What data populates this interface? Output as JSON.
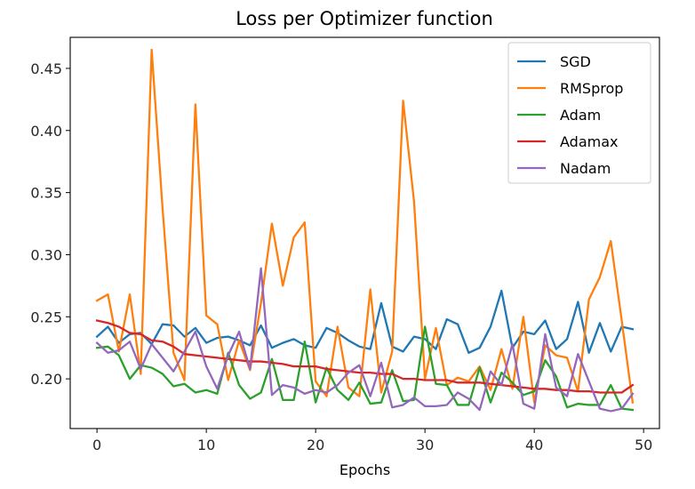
{
  "chart_data": {
    "type": "line",
    "title": "Loss per Optimizer function",
    "xlabel": "Epochs",
    "ylabel": "",
    "xlim": [
      -2.45,
      51.45
    ],
    "ylim": [
      0.16,
      0.475
    ],
    "xticks": [
      0,
      10,
      20,
      30,
      40,
      50
    ],
    "yticks": [
      0.2,
      0.25,
      0.3,
      0.35,
      0.4,
      0.45
    ],
    "ytick_labels": [
      "0.20",
      "0.25",
      "0.30",
      "0.35",
      "0.40",
      "0.45"
    ],
    "grid": false,
    "legend_position": "upper right",
    "x": [
      0,
      1,
      2,
      3,
      4,
      5,
      6,
      7,
      8,
      9,
      10,
      11,
      12,
      13,
      14,
      15,
      16,
      17,
      18,
      19,
      20,
      21,
      22,
      23,
      24,
      25,
      26,
      27,
      28,
      29,
      30,
      31,
      32,
      33,
      34,
      35,
      36,
      37,
      38,
      39,
      40,
      41,
      42,
      43,
      44,
      45,
      46,
      47,
      48,
      49
    ],
    "series": [
      {
        "name": "SGD",
        "color": "#1f77b4",
        "values": [
          0.234,
          0.242,
          0.229,
          0.236,
          0.237,
          0.228,
          0.244,
          0.243,
          0.234,
          0.241,
          0.229,
          0.233,
          0.234,
          0.231,
          0.227,
          0.243,
          0.225,
          0.229,
          0.232,
          0.227,
          0.225,
          0.241,
          0.237,
          0.231,
          0.226,
          0.224,
          0.261,
          0.226,
          0.222,
          0.234,
          0.232,
          0.224,
          0.248,
          0.244,
          0.221,
          0.225,
          0.242,
          0.271,
          0.225,
          0.238,
          0.236,
          0.247,
          0.224,
          0.232,
          0.262,
          0.221,
          0.245,
          0.222,
          0.242,
          0.24
        ]
      },
      {
        "name": "RMSprop",
        "color": "#ff7f0e",
        "values": [
          0.263,
          0.268,
          0.222,
          0.268,
          0.204,
          0.465,
          0.337,
          0.221,
          0.199,
          0.421,
          0.251,
          0.244,
          0.199,
          0.231,
          0.207,
          0.261,
          0.325,
          0.275,
          0.314,
          0.326,
          0.198,
          0.186,
          0.242,
          0.193,
          0.186,
          0.272,
          0.189,
          0.222,
          0.424,
          0.343,
          0.2,
          0.241,
          0.195,
          0.201,
          0.198,
          0.21,
          0.191,
          0.224,
          0.192,
          0.25,
          0.181,
          0.227,
          0.219,
          0.217,
          0.19,
          0.264,
          0.282,
          0.311,
          0.247,
          0.181
        ]
      },
      {
        "name": "Adam",
        "color": "#2ca02c",
        "values": [
          0.225,
          0.226,
          0.219,
          0.2,
          0.211,
          0.209,
          0.204,
          0.194,
          0.196,
          0.189,
          0.191,
          0.188,
          0.221,
          0.195,
          0.184,
          0.189,
          0.216,
          0.183,
          0.183,
          0.23,
          0.181,
          0.209,
          0.191,
          0.183,
          0.197,
          0.18,
          0.181,
          0.207,
          0.182,
          0.183,
          0.242,
          0.196,
          0.195,
          0.179,
          0.179,
          0.209,
          0.181,
          0.205,
          0.197,
          0.187,
          0.19,
          0.215,
          0.202,
          0.177,
          0.18,
          0.179,
          0.179,
          0.195,
          0.176,
          0.175
        ]
      },
      {
        "name": "Adamax",
        "color": "#d62728",
        "values": [
          0.247,
          0.245,
          0.242,
          0.237,
          0.236,
          0.231,
          0.23,
          0.226,
          0.22,
          0.219,
          0.218,
          0.217,
          0.216,
          0.215,
          0.214,
          0.214,
          0.213,
          0.212,
          0.21,
          0.21,
          0.21,
          0.208,
          0.207,
          0.206,
          0.205,
          0.205,
          0.204,
          0.204,
          0.2,
          0.2,
          0.199,
          0.199,
          0.199,
          0.197,
          0.197,
          0.197,
          0.196,
          0.195,
          0.194,
          0.193,
          0.192,
          0.192,
          0.191,
          0.191,
          0.19,
          0.19,
          0.189,
          0.189,
          0.189,
          0.195
        ]
      },
      {
        "name": "Nadam",
        "color": "#9467bd",
        "values": [
          0.229,
          0.221,
          0.223,
          0.23,
          0.208,
          0.228,
          0.217,
          0.206,
          0.222,
          0.238,
          0.21,
          0.192,
          0.219,
          0.238,
          0.208,
          0.289,
          0.187,
          0.195,
          0.193,
          0.188,
          0.191,
          0.189,
          0.195,
          0.205,
          0.211,
          0.186,
          0.213,
          0.177,
          0.179,
          0.185,
          0.178,
          0.178,
          0.179,
          0.189,
          0.184,
          0.175,
          0.206,
          0.195,
          0.228,
          0.18,
          0.176,
          0.236,
          0.193,
          0.186,
          0.22,
          0.198,
          0.176,
          0.174,
          0.176,
          0.188
        ]
      }
    ]
  }
}
